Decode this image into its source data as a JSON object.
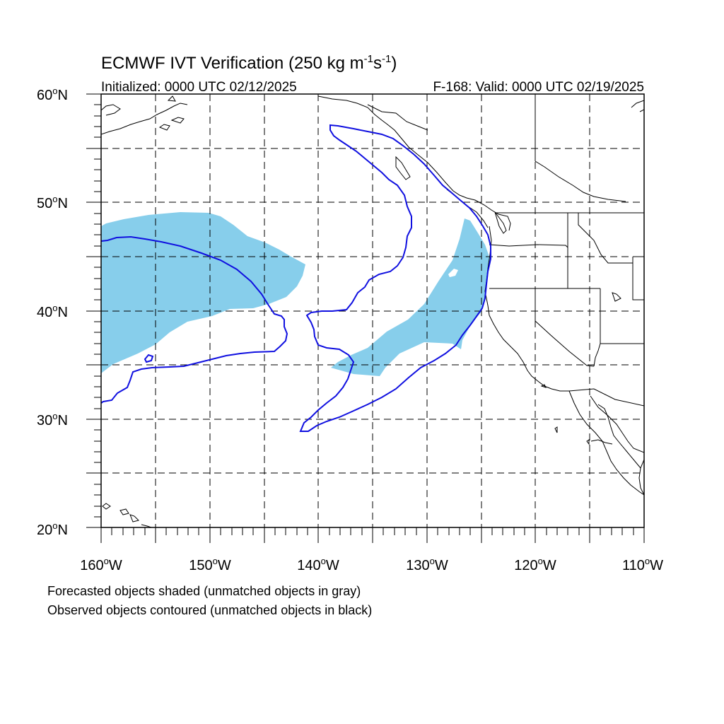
{
  "title": {
    "main": "ECMWF IVT Verification (250 kg m",
    "sup1": "-1",
    "mid": "s",
    "sup2": "-1",
    "close": ")"
  },
  "subtitle_left": "Initialized: 0000 UTC 02/12/2025",
  "subtitle_right": "F-168: Valid: 0000 UTC 02/19/2025",
  "lat_labels": [
    "60",
    "50",
    "40",
    "30",
    "20"
  ],
  "lon_labels": [
    "160",
    "150",
    "140",
    "130",
    "120",
    "110"
  ],
  "lat_suffix": "N",
  "lon_suffix": "W",
  "degree": "o",
  "footer_line1": "Forecasted objects shaded (unmatched objects in gray)",
  "footer_line2": "Observed objects contoured (unmatched objects in black)",
  "map": {
    "lon_range": [
      -160,
      -110
    ],
    "lat_range": [
      20,
      60
    ],
    "grid_step_deg": 5,
    "forecast_shade_color": "#87ceeb",
    "observed_contour_color": "#1010e0",
    "coast_color": "#000000"
  }
}
